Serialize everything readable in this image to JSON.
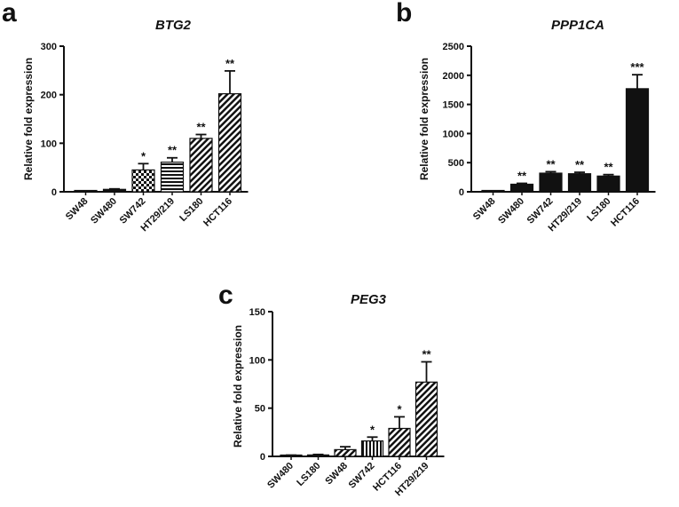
{
  "chart_data": [
    {
      "panel": "a",
      "type": "bar",
      "title": "BTG2",
      "ylabel": "Relative fold expression",
      "xlabel": "",
      "ylim": [
        0,
        300
      ],
      "yticks": [
        0,
        100,
        200,
        300
      ],
      "categories": [
        "SW48",
        "SW480",
        "SW742",
        "HT29/219",
        "LS180",
        "HCT116"
      ],
      "values": [
        1,
        5,
        45,
        61,
        110,
        202
      ],
      "errors": [
        0.5,
        1,
        13,
        9,
        8,
        47
      ],
      "significance": [
        "",
        "",
        "*",
        "**",
        "**",
        "**"
      ],
      "patterns": [
        "solid",
        "solid",
        "checker",
        "hlines",
        "diag",
        "diag"
      ]
    },
    {
      "panel": "b",
      "type": "bar",
      "title": "PPP1CA",
      "ylabel": "Relative fold expression",
      "xlabel": "",
      "ylim": [
        0,
        2500
      ],
      "yticks": [
        0,
        500,
        1000,
        1500,
        2000,
        2500
      ],
      "categories": [
        "SW48",
        "SW480",
        "SW742",
        "HT29/219",
        "LS180",
        "HCT116"
      ],
      "values": [
        1,
        130,
        320,
        310,
        270,
        1770
      ],
      "errors": [
        0.5,
        15,
        25,
        25,
        25,
        240
      ],
      "significance": [
        "",
        "**",
        "**",
        "**",
        "**",
        "***"
      ],
      "patterns": [
        "solid",
        "solid",
        "solid",
        "solid",
        "solid",
        "solid"
      ]
    },
    {
      "panel": "c",
      "type": "bar",
      "title": "PEG3",
      "ylabel": "Relative fold expression",
      "xlabel": "",
      "ylim": [
        0,
        150
      ],
      "yticks": [
        0,
        50,
        100,
        150
      ],
      "categories": [
        "SW480",
        "LS180",
        "SW48",
        "SW742",
        "HCT116",
        "HT29/219"
      ],
      "values": [
        1,
        1.5,
        7,
        16,
        29,
        77
      ],
      "errors": [
        0.3,
        0.5,
        3,
        4,
        12,
        21
      ],
      "significance": [
        "",
        "",
        "",
        "*",
        "*",
        "**"
      ],
      "patterns": [
        "solid",
        "solid",
        "diag",
        "vlines",
        "diag",
        "diag"
      ]
    }
  ]
}
